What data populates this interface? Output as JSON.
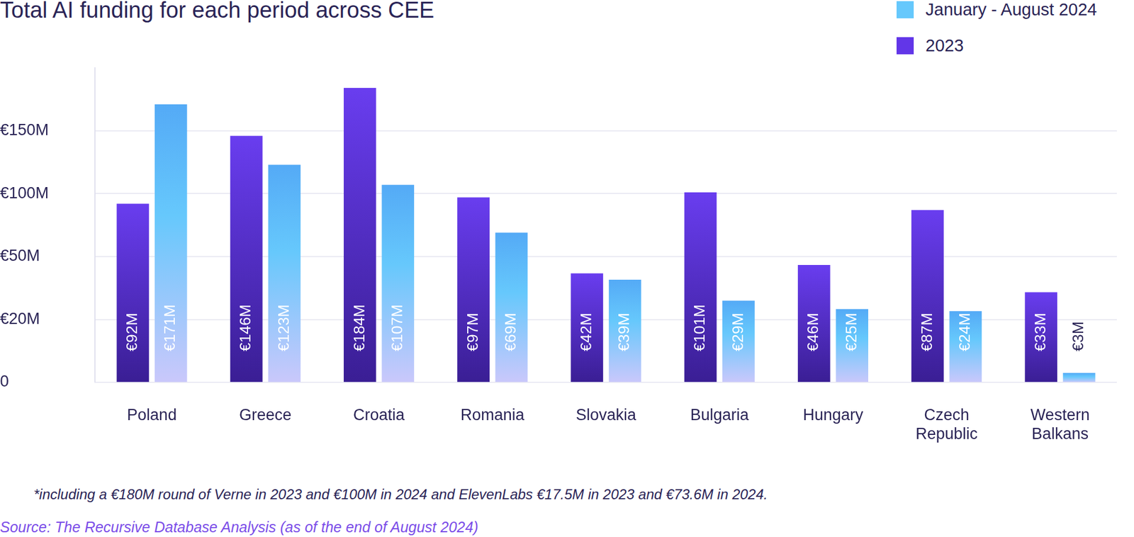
{
  "chart_data": {
    "type": "bar",
    "title": "Total AI funding for each period across CEE",
    "categories": [
      "Poland",
      "Greece",
      "Croatia",
      "Romania",
      "Slovakia",
      "Bulgaria",
      "Hungary",
      "Czech Republic",
      "Western Balkans"
    ],
    "series": [
      {
        "name": "2023",
        "color": "#6236e8",
        "values": [
          92,
          146,
          184,
          97,
          42,
          101,
          46,
          87,
          33
        ],
        "value_labels": [
          "€92M",
          "€146M",
          "€184M",
          "€97M",
          "€42M",
          "€101M",
          "€46M",
          "€87M",
          "€33M"
        ]
      },
      {
        "name": "January - August 2024",
        "color": "#66c8fc",
        "values": [
          171,
          123,
          107,
          69,
          39,
          29,
          25,
          24,
          3
        ],
        "value_labels": [
          "€171M",
          "€123M",
          "€107M",
          "€69M",
          "€39M",
          "€29M",
          "€25M",
          "€24M",
          "€3M"
        ]
      }
    ],
    "ylim": [
      0,
      200
    ],
    "yticks": [
      0,
      {
        "value": 20,
        "label": "€20M"
      },
      {
        "value": 50,
        "label": "€50M"
      },
      {
        "value": 100,
        "label": "€100M"
      },
      {
        "value": 150,
        "label": "€150M"
      }
    ],
    "grid": true,
    "legend": "upper right",
    "data_labels": true
  },
  "footnote": "*including a €180M round of Verne in 2023 and €100M in 2024 and ElevenLabs €17.5M in 2023 and €73.6M in 2024.",
  "source": "Source: The Recursive Database Analysis (as of the end of August 2024)"
}
